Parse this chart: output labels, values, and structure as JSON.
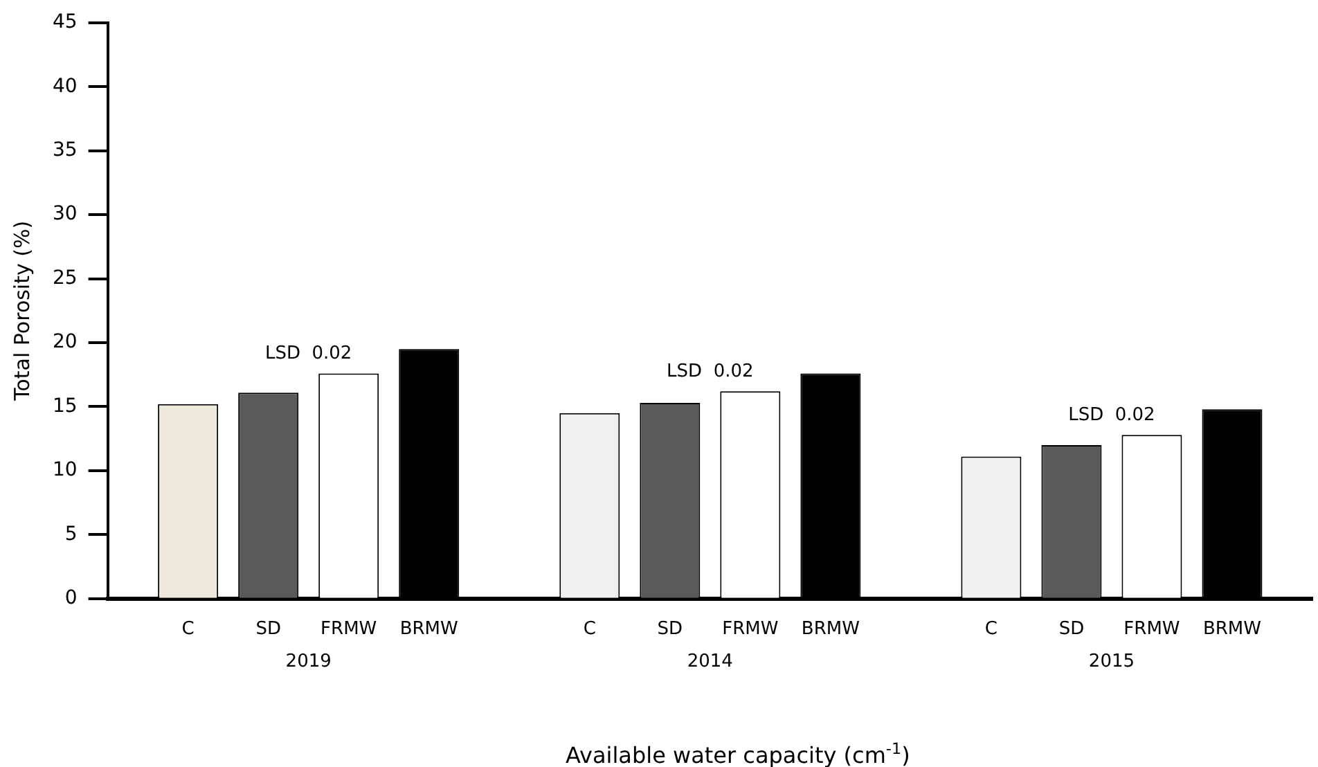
{
  "chart_data": {
    "type": "bar",
    "xlabel": "Available water capacity (cm$^{-1}$)",
    "ylabel": "Total Porosity (%)",
    "categories": [
      "2019",
      "2014",
      "2015"
    ],
    "series": [
      {
        "name": "C",
        "colors": [
          "#ede9dd",
          "#f0f0f0",
          "#f0f0f0"
        ],
        "values": [
          15.2,
          14.5,
          11.1
        ]
      },
      {
        "name": "SD",
        "color": "#5a5a5a",
        "values": [
          16.1,
          15.3,
          12.0
        ]
      },
      {
        "name": "FRMW",
        "color": "#ffffff",
        "values": [
          17.6,
          16.2,
          12.8
        ]
      },
      {
        "name": "BRMW",
        "color": "#000000",
        "values": [
          19.5,
          17.6,
          14.8
        ]
      }
    ],
    "annotations": [
      "LSD  0.02",
      "LSD  0.02",
      "LSD  0.02"
    ],
    "ylim": [
      0,
      45
    ],
    "yticks": [
      0,
      5,
      10,
      15,
      20,
      25,
      30,
      35,
      40,
      45
    ],
    "grid": false,
    "legend": false
  }
}
